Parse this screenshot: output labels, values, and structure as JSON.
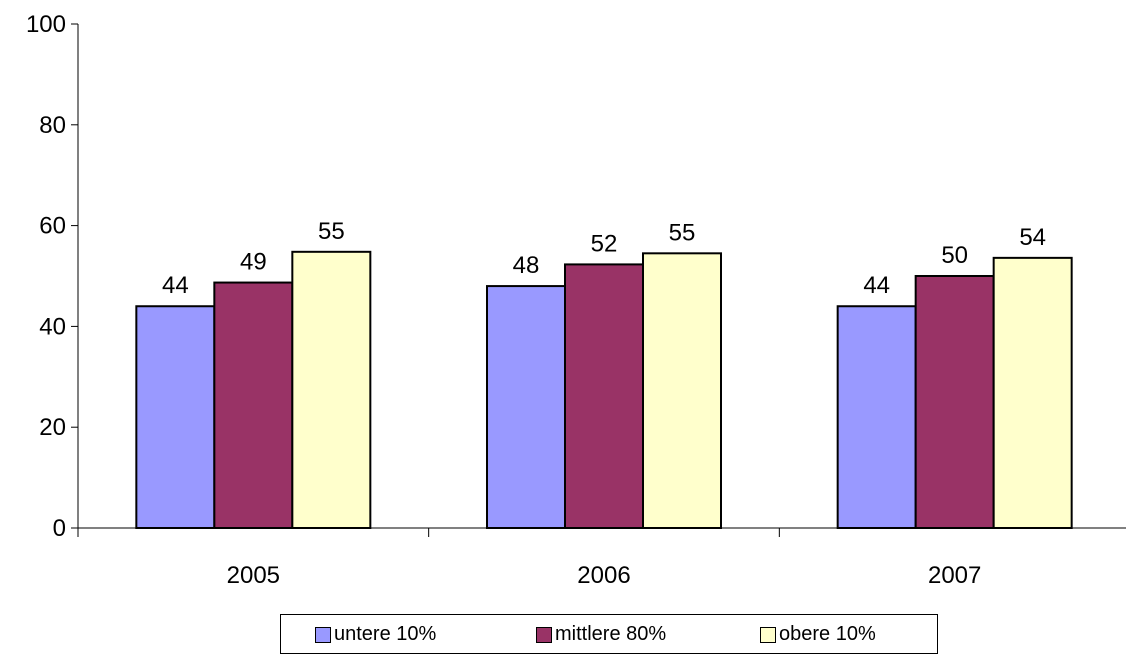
{
  "chart_data": {
    "type": "bar",
    "categories": [
      "2005",
      "2006",
      "2007"
    ],
    "series": [
      {
        "name": "untere 10%",
        "values": [
          44,
          48,
          44
        ],
        "labels": [
          "44",
          "48",
          "44"
        ],
        "color": "#9999ff"
      },
      {
        "name": "mittlere 80%",
        "values": [
          48.7,
          52.3,
          50
        ],
        "labels": [
          "49",
          "52",
          "50"
        ],
        "color": "#993366"
      },
      {
        "name": "obere 10%",
        "values": [
          54.8,
          54.5,
          53.6
        ],
        "labels": [
          "55",
          "55",
          "54"
        ],
        "color": "#ffffcc"
      }
    ],
    "yticks": [
      "0",
      "20",
      "40",
      "60",
      "80",
      "100"
    ],
    "ylim": [
      0,
      100
    ],
    "grid": false,
    "legend_position": "bottom"
  }
}
